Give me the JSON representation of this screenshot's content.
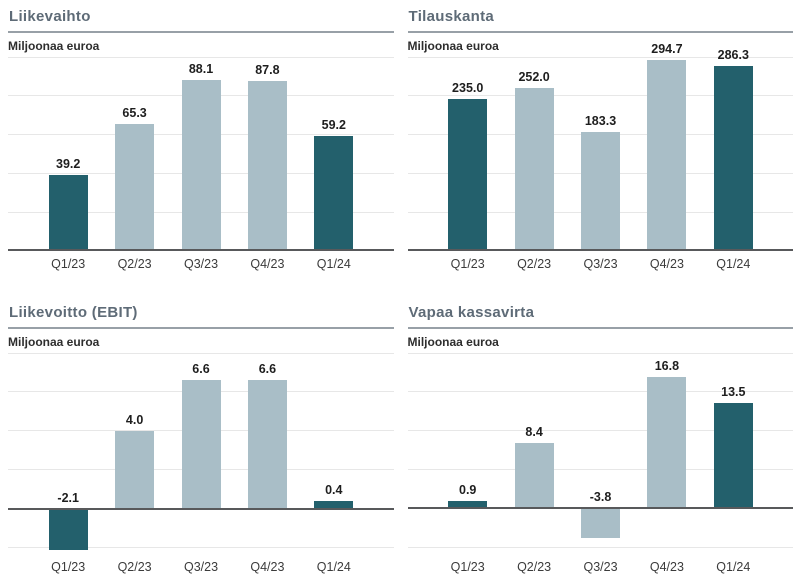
{
  "subtitle_unit": "Miljoonaa euroa",
  "colors": {
    "bar_dark": "#23606C",
    "bar_light": "#A9BEC7",
    "gridline": "#E7E7E7",
    "zero_line": "#58595B",
    "title_rule": "#98A0A7",
    "title_text": "#5E6B77",
    "subtitle_text": "#2E2E2E",
    "value_label": "#1E1E1E",
    "axis_label": "#3B3B3B"
  },
  "chart_data": [
    {
      "type": "bar",
      "title": "Liikevaihto",
      "subtitle": "Miljoonaa euroa",
      "categories": [
        "Q1/23",
        "Q2/23",
        "Q3/23",
        "Q4/23",
        "Q1/24"
      ],
      "values": [
        39.2,
        65.3,
        88.1,
        87.8,
        59.2
      ],
      "value_labels": [
        "39.2",
        "65.3",
        "88.1",
        "87.8",
        "59.2"
      ],
      "bar_colors": [
        "dark",
        "light",
        "light",
        "light",
        "dark"
      ],
      "ylim": [
        0,
        100
      ],
      "grid_step": 20,
      "legend": "none",
      "grid": "horizontal"
    },
    {
      "type": "bar",
      "title": "Tilauskanta",
      "subtitle": "Miljoonaa euroa",
      "categories": [
        "Q1/23",
        "Q2/23",
        "Q3/23",
        "Q4/23",
        "Q1/24"
      ],
      "values": [
        235.0,
        252.0,
        183.3,
        294.7,
        286.3
      ],
      "value_labels": [
        "235.0",
        "252.0",
        "183.3",
        "294.7",
        "286.3"
      ],
      "bar_colors": [
        "dark",
        "light",
        "light",
        "light",
        "dark"
      ],
      "ylim": [
        0,
        300
      ],
      "grid_step": 60,
      "legend": "none",
      "grid": "horizontal"
    },
    {
      "type": "bar",
      "title": "Liikevoitto (EBIT)",
      "subtitle": "Miljoonaa euroa",
      "categories": [
        "Q1/23",
        "Q2/23",
        "Q3/23",
        "Q4/23",
        "Q1/24"
      ],
      "values": [
        -2.1,
        4.0,
        6.6,
        6.6,
        0.4
      ],
      "value_labels": [
        "-2.1",
        "4.0",
        "6.6",
        "6.6",
        "0.4"
      ],
      "bar_colors": [
        "dark",
        "light",
        "light",
        "light",
        "dark"
      ],
      "ylim": [
        -2.3,
        8
      ],
      "grid_step": 2,
      "legend": "none",
      "grid": "horizontal"
    },
    {
      "type": "bar",
      "title": "Vapaa kassavirta",
      "subtitle": "Miljoonaa euroa",
      "categories": [
        "Q1/23",
        "Q2/23",
        "Q3/23",
        "Q4/23",
        "Q1/24"
      ],
      "values": [
        0.9,
        8.4,
        -3.8,
        16.8,
        13.5
      ],
      "value_labels": [
        "0.9",
        "8.4",
        "-3.8",
        "16.8",
        "13.5"
      ],
      "bar_colors": [
        "dark",
        "light",
        "light",
        "light",
        "dark"
      ],
      "ylim": [
        -5.8,
        20
      ],
      "grid_step": 5,
      "legend": "none",
      "grid": "horizontal"
    }
  ]
}
